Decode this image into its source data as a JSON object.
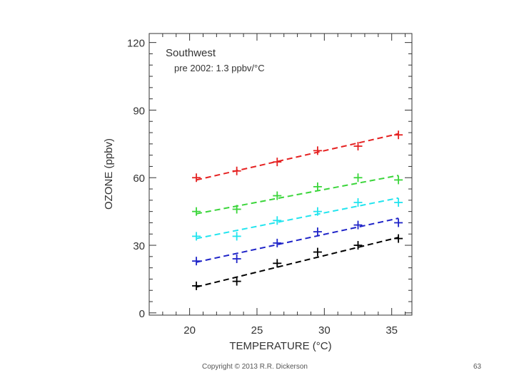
{
  "chart_data": {
    "type": "scatter",
    "title": "Southwest",
    "subtitle": "pre 2002: 1.3 ppbv/°C",
    "xlabel": "TEMPERATURE (°C)",
    "ylabel": "OZONE (ppbv)",
    "xlim": [
      17,
      36.5
    ],
    "ylim": [
      -1,
      124
    ],
    "xticks": [
      20,
      25,
      30,
      35
    ],
    "yticks": [
      0,
      30,
      60,
      90,
      120
    ],
    "x": [
      20.5,
      23.5,
      26.5,
      29.5,
      32.5,
      35.5
    ],
    "series": [
      {
        "name": "black",
        "color": "#000000",
        "values": [
          12,
          14,
          22,
          27,
          30,
          33
        ],
        "fit": [
          11.5,
          33.5
        ]
      },
      {
        "name": "blue",
        "color": "#1f24c8",
        "values": [
          23,
          24,
          31,
          36,
          39,
          40
        ],
        "fit": [
          22.5,
          42
        ]
      },
      {
        "name": "cyan",
        "color": "#22e4ee",
        "values": [
          34,
          34,
          41,
          45,
          49,
          49
        ],
        "fit": [
          33,
          51
        ]
      },
      {
        "name": "green",
        "color": "#3ad53a",
        "values": [
          45,
          46,
          52,
          56,
          60,
          59
        ],
        "fit": [
          44,
          61
        ]
      },
      {
        "name": "red",
        "color": "#e52222",
        "values": [
          60,
          63,
          67,
          72,
          74,
          79
        ],
        "fit": [
          59,
          79.5
        ]
      }
    ]
  },
  "footer": {
    "copyright": "Copyright © 2013 R.R. Dickerson",
    "page_number": "63"
  }
}
